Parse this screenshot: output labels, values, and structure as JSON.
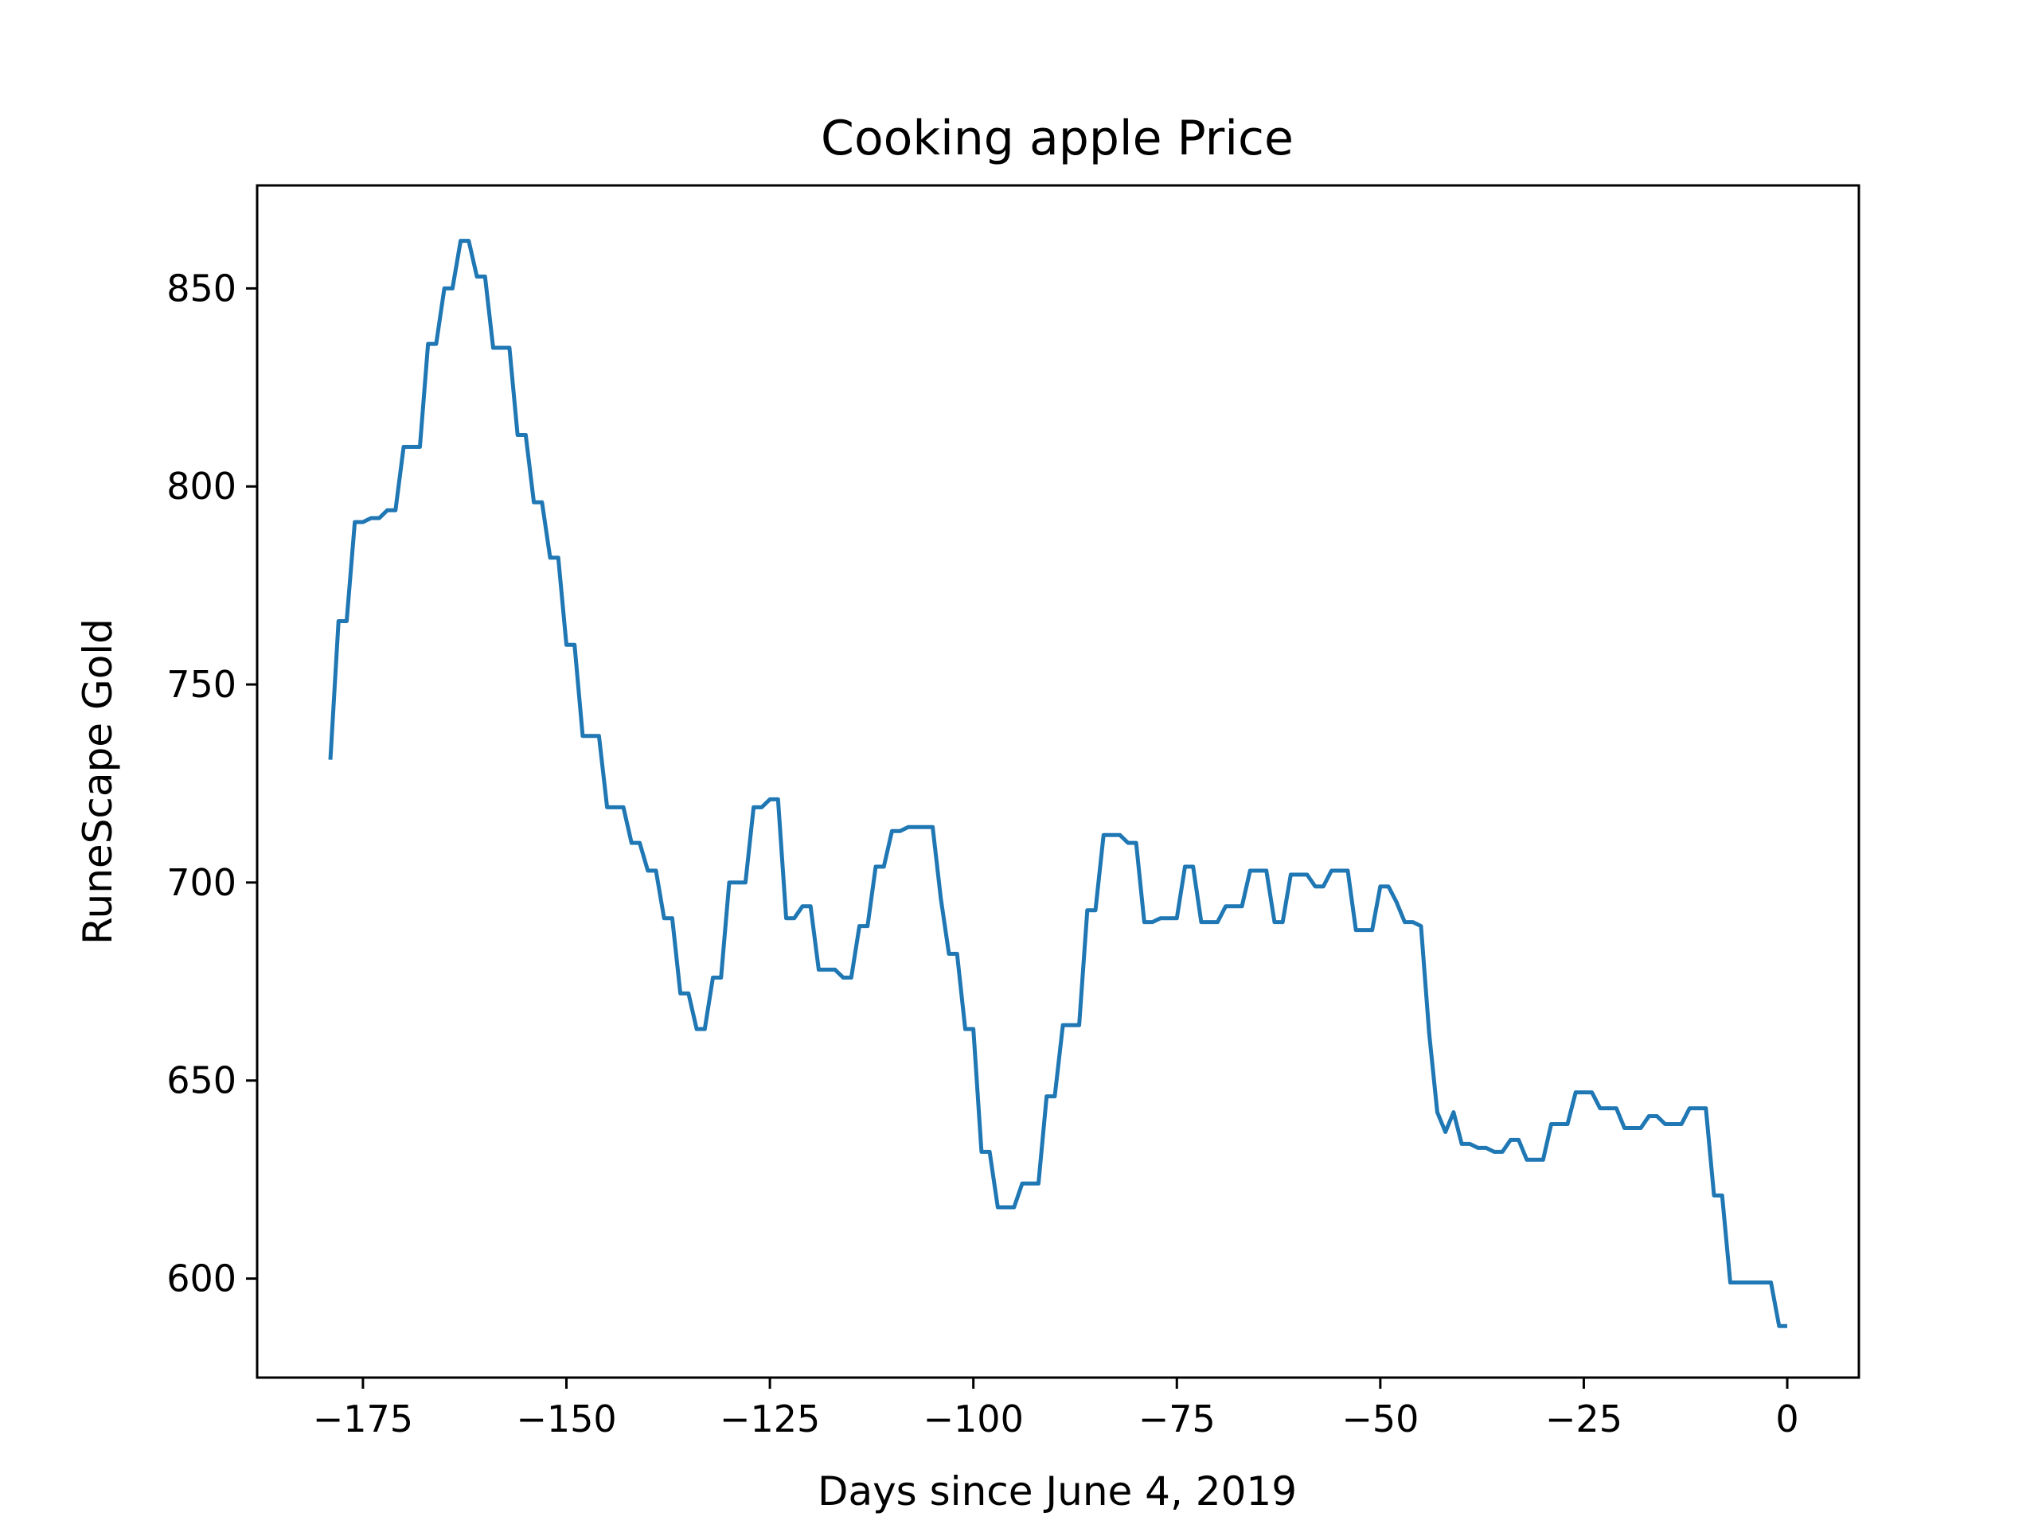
{
  "chart_data": {
    "type": "line",
    "title": "Cooking apple Price",
    "xlabel": "Days since June 4, 2019",
    "ylabel": "RuneScape Gold",
    "xlim": [
      -188,
      8.8
    ],
    "ylim": [
      575,
      876
    ],
    "xticks": [
      -175,
      -150,
      -125,
      -100,
      -75,
      -50,
      -25,
      0
    ],
    "xtick_labels": [
      "−175",
      "−150",
      "−125",
      "−100",
      "−75",
      "−50",
      "−25",
      "0"
    ],
    "yticks": [
      600,
      650,
      700,
      750,
      800,
      850
    ],
    "ytick_labels": [
      "600",
      "650",
      "700",
      "750",
      "800",
      "850"
    ],
    "grid": false,
    "legend": "none",
    "color": "#1f77b4",
    "series": [
      {
        "x": [
          -179,
          -178,
          -177,
          -176,
          -175,
          -174,
          -173,
          -172,
          -171,
          -170,
          -169,
          -168,
          -167,
          -166,
          -165,
          -164,
          -163,
          -162,
          -161,
          -160,
          -159,
          -158,
          -157,
          -156,
          -155,
          -154,
          -153,
          -152,
          -151,
          -150,
          -149,
          -148,
          -147,
          -146,
          -145,
          -144,
          -143,
          -142,
          -141,
          -140,
          -139,
          -138,
          -137,
          -136,
          -135,
          -134,
          -133,
          -132,
          -131,
          -130,
          -129,
          -128,
          -127,
          -126,
          -125,
          -124,
          -123,
          -122,
          -121,
          -120,
          -119,
          -118,
          -117,
          -116,
          -115,
          -114,
          -113,
          -112,
          -111,
          -110,
          -109,
          -108,
          -107,
          -106,
          -105,
          -104,
          -103,
          -102,
          -101,
          -100,
          -99,
          -98,
          -97,
          -96,
          -95,
          -94,
          -93,
          -92,
          -91,
          -90,
          -89,
          -88,
          -87,
          -86,
          -85,
          -84,
          -83,
          -82,
          -81,
          -80,
          -79,
          -78,
          -77,
          -76,
          -75,
          -74,
          -73,
          -72,
          -71,
          -70,
          -69,
          -68,
          -67,
          -66,
          -65,
          -64,
          -63,
          -62,
          -61,
          -60,
          -59,
          -58,
          -57,
          -56,
          -55,
          -54,
          -53,
          -52,
          -51,
          -50,
          -49,
          -48,
          -47,
          -46,
          -45,
          -44,
          -43,
          -42,
          -41,
          -40,
          -39,
          -38,
          -37,
          -36,
          -35,
          -34,
          -33,
          -32,
          -31,
          -30,
          -29,
          -28,
          -27,
          -26,
          -25,
          -24,
          -23,
          -22,
          -21,
          -20,
          -19,
          -18,
          -17,
          -16,
          -15,
          -14,
          -13,
          -12,
          -11,
          -10,
          -9,
          -8,
          -7,
          -6,
          -5,
          -4,
          -3,
          -2,
          -1,
          0
        ],
        "values": [
          731,
          766,
          766,
          791,
          791,
          792,
          792,
          794,
          794,
          810,
          810,
          810,
          836,
          836,
          850,
          850,
          862,
          862,
          853,
          853,
          835,
          835,
          835,
          813,
          813,
          796,
          796,
          782,
          782,
          760,
          760,
          737,
          737,
          737,
          719,
          719,
          719,
          710,
          710,
          703,
          703,
          691,
          691,
          672,
          672,
          663,
          663,
          676,
          676,
          700,
          700,
          700,
          719,
          719,
          721,
          721,
          691,
          691,
          694,
          694,
          678,
          678,
          678,
          676,
          676,
          689,
          689,
          704,
          704,
          713,
          713,
          714,
          714,
          714,
          714,
          696,
          682,
          682,
          663,
          663,
          632,
          632,
          618,
          618,
          618,
          624,
          624,
          624,
          646,
          646,
          664,
          664,
          664,
          693,
          693,
          712,
          712,
          712,
          710,
          710,
          690,
          690,
          691,
          691,
          691,
          704,
          704,
          690,
          690,
          690,
          694,
          694,
          694,
          703,
          703,
          703,
          690,
          690,
          702,
          702,
          702,
          699,
          699,
          703,
          703,
          703,
          688,
          688,
          688,
          699,
          699,
          695,
          690,
          690,
          689,
          662,
          642,
          637,
          642,
          634,
          634,
          633,
          633,
          632,
          632,
          635,
          635,
          630,
          630,
          630,
          639,
          639,
          639,
          647,
          647,
          647,
          643,
          643,
          643,
          638,
          638,
          638,
          641,
          641,
          639,
          639,
          639,
          643,
          643,
          643,
          621,
          621,
          599,
          599,
          599,
          599,
          599,
          599,
          588,
          588
        ]
      }
    ]
  }
}
